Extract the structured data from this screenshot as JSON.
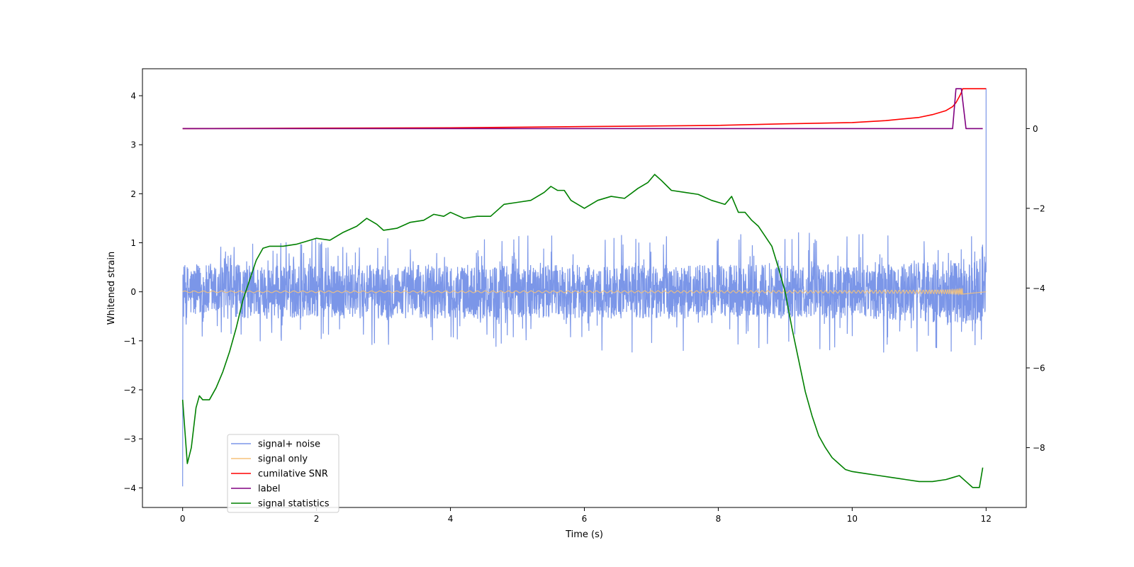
{
  "chart_data": {
    "type": "line",
    "title": "",
    "xlabel": "Time (s)",
    "ylabel": "Whitened strain",
    "xlim": [
      -0.6,
      12.6
    ],
    "ylim": [
      -4.4,
      4.55
    ],
    "y2lim": [
      -9.5,
      1.5
    ],
    "xticks": [
      0,
      2,
      4,
      6,
      8,
      10,
      12
    ],
    "xtick_labels": [
      "0",
      "2",
      "4",
      "6",
      "8",
      "10",
      "12"
    ],
    "yticks": [
      -4,
      -3,
      -2,
      -1,
      0,
      1,
      2,
      3,
      4
    ],
    "ytick_labels": [
      "−4",
      "−3",
      "−2",
      "−1",
      "0",
      "1",
      "2",
      "3",
      "4"
    ],
    "y2ticks": [
      -8,
      -6,
      -4,
      -2,
      0
    ],
    "y2tick_labels": [
      "−8",
      "−6",
      "−4",
      "−2",
      "0"
    ],
    "grid": false,
    "legend_position": "lower-left",
    "colors": {
      "signal_noise": "#7b96e8",
      "signal_only": "#f5c27a",
      "cumulative_snr": "#ff0000",
      "label": "#800080",
      "signal_statistics": "#008000"
    },
    "series": [
      {
        "name": "signal+ noise",
        "axis": "left",
        "noise_envelope": {
          "x": [
            0,
            1,
            2,
            3,
            4,
            5,
            6,
            7,
            8,
            9,
            10,
            11,
            11.5,
            11.9,
            12.0
          ],
          "typical_abs": [
            0.55,
            0.55,
            0.55,
            0.55,
            0.55,
            0.55,
            0.55,
            0.55,
            0.55,
            0.55,
            0.55,
            0.6,
            0.65,
            0.7,
            0.75
          ],
          "peak_abs": [
            0.95,
            1.0,
            1.1,
            1.1,
            1.05,
            1.2,
            1.2,
            1.3,
            1.15,
            1.25,
            1.2,
            1.3,
            1.35,
            1.1,
            0.9
          ]
        },
        "spikes": [
          {
            "x": 0.0,
            "y": -3.97
          },
          {
            "x": 12.0,
            "y": 4.15
          }
        ]
      },
      {
        "name": "signal only",
        "axis": "left",
        "chirp": {
          "start_x": 0,
          "end_x": 11.65,
          "end_amplitude": 0.72
        }
      },
      {
        "name": "cumilative SNR",
        "axis": "right",
        "x": [
          0,
          2,
          4,
          6,
          8,
          9,
          10,
          10.5,
          11,
          11.2,
          11.4,
          11.5,
          11.55,
          11.6,
          11.63,
          11.65,
          12.0
        ],
        "values": [
          0,
          0.01,
          0.02,
          0.05,
          0.08,
          0.12,
          0.15,
          0.2,
          0.28,
          0.35,
          0.45,
          0.55,
          0.65,
          0.8,
          0.9,
          1.0,
          1.0
        ]
      },
      {
        "name": "label",
        "axis": "right",
        "x": [
          0,
          11.5,
          11.55,
          11.63,
          11.7,
          11.95
        ],
        "values": [
          0,
          0,
          1.0,
          1.0,
          0,
          0
        ]
      },
      {
        "name": "signal statistics",
        "axis": "right",
        "x": [
          0,
          0.07,
          0.13,
          0.2,
          0.25,
          0.3,
          0.4,
          0.5,
          0.6,
          0.7,
          0.8,
          0.9,
          1.0,
          1.1,
          1.2,
          1.3,
          1.5,
          1.7,
          1.9,
          2.0,
          2.2,
          2.4,
          2.6,
          2.75,
          2.9,
          3.0,
          3.2,
          3.4,
          3.6,
          3.75,
          3.9,
          4.0,
          4.2,
          4.4,
          4.6,
          4.8,
          5.0,
          5.2,
          5.4,
          5.5,
          5.6,
          5.7,
          5.8,
          5.9,
          6.0,
          6.2,
          6.4,
          6.6,
          6.8,
          6.95,
          7.05,
          7.15,
          7.3,
          7.5,
          7.7,
          7.9,
          8.1,
          8.2,
          8.3,
          8.4,
          8.5,
          8.6,
          8.7,
          8.8,
          8.9,
          9.0,
          9.1,
          9.2,
          9.3,
          9.4,
          9.5,
          9.6,
          9.7,
          9.8,
          9.9,
          10.0,
          10.2,
          10.4,
          10.6,
          10.8,
          11.0,
          11.2,
          11.4,
          11.5,
          11.6,
          11.7,
          11.8,
          11.9,
          11.95
        ],
        "values": [
          -6.8,
          -8.4,
          -8.0,
          -7.0,
          -6.7,
          -6.8,
          -6.8,
          -6.5,
          -6.1,
          -5.6,
          -5.0,
          -4.3,
          -3.8,
          -3.3,
          -3.0,
          -2.95,
          -2.95,
          -2.9,
          -2.8,
          -2.75,
          -2.8,
          -2.6,
          -2.45,
          -2.25,
          -2.4,
          -2.55,
          -2.5,
          -2.35,
          -2.3,
          -2.15,
          -2.2,
          -2.1,
          -2.25,
          -2.2,
          -2.2,
          -1.9,
          -1.85,
          -1.8,
          -1.6,
          -1.45,
          -1.55,
          -1.55,
          -1.8,
          -1.9,
          -2.0,
          -1.8,
          -1.7,
          -1.75,
          -1.5,
          -1.35,
          -1.15,
          -1.3,
          -1.55,
          -1.6,
          -1.65,
          -1.8,
          -1.9,
          -1.7,
          -2.1,
          -2.1,
          -2.3,
          -2.45,
          -2.7,
          -2.95,
          -3.5,
          -4.1,
          -5.0,
          -5.8,
          -6.6,
          -7.2,
          -7.7,
          -8.0,
          -8.25,
          -8.4,
          -8.55,
          -8.6,
          -8.65,
          -8.7,
          -8.75,
          -8.8,
          -8.85,
          -8.85,
          -8.8,
          -8.75,
          -8.7,
          -8.85,
          -9.0,
          -9.0,
          -8.5
        ]
      }
    ]
  }
}
